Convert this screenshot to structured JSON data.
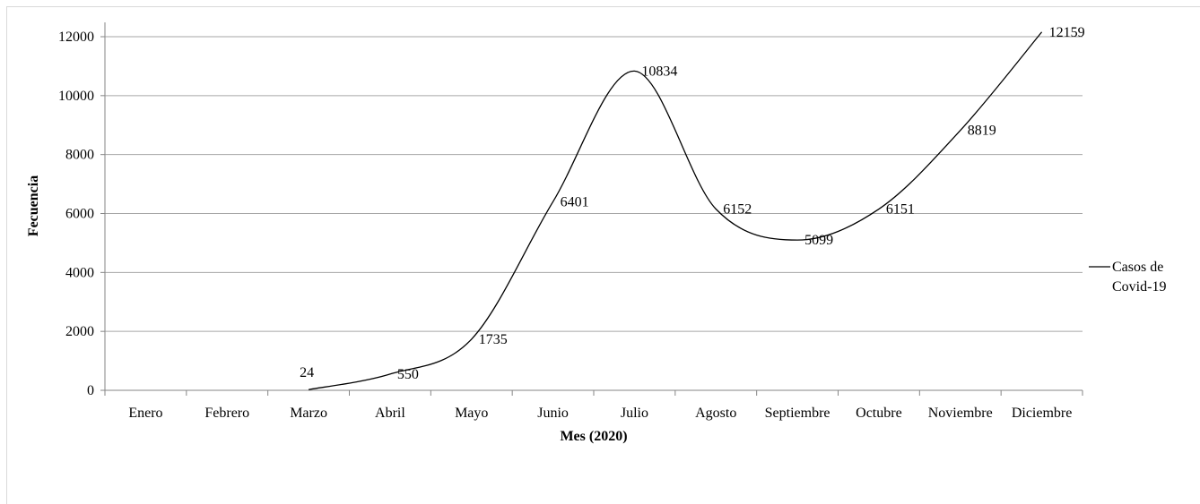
{
  "chart_data": {
    "type": "line",
    "categories": [
      "Enero",
      "Febrero",
      "Marzo",
      "Abril",
      "Mayo",
      "Junio",
      "Julio",
      "Agosto",
      "Septiembre",
      "Octubre",
      "Noviembre",
      "Diciembre"
    ],
    "series": [
      {
        "name": "Casos de Covid-19",
        "values": [
          null,
          null,
          24,
          550,
          1735,
          6401,
          10834,
          6152,
          5099,
          6151,
          8819,
          12159
        ]
      }
    ],
    "title": "",
    "xlabel": "Mes (2020)",
    "ylabel": "Fecuencia",
    "ylim": [
      0,
      12000
    ],
    "yticks": [
      "0",
      "2000",
      "4000",
      "6000",
      "8000",
      "10000",
      "12000"
    ],
    "grid": "horizontal",
    "legend_position": "right",
    "line_color": "#000000",
    "grid_color": "#a6a6a6"
  },
  "legend": {
    "line1": "Casos de",
    "line2": "Covid-19"
  }
}
